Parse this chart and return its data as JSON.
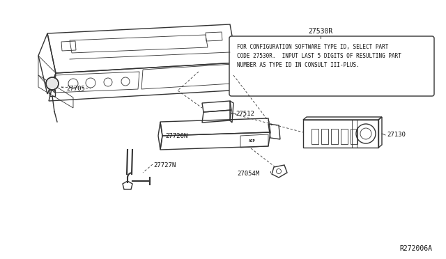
{
  "bg_color": "#ffffff",
  "fig_width": 6.4,
  "fig_height": 3.72,
  "dpi": 100,
  "watermark": "R272006A",
  "callout_label": "27530R",
  "callout_text_line1": "FOR CONFIGURATION SOFTWARE TYPE ID, SELECT PART",
  "callout_text_line2": "CODE 27530R.  INPUT LAST 5 DIGITS OF RESULTING PART",
  "callout_text_line3": "NUMBER AS TYPE ID IN CONSULT III-PLUS.",
  "line_color": "#333333",
  "text_color": "#111111",
  "lw_main": 1.0,
  "lw_thin": 0.6,
  "lw_dash": 0.6
}
